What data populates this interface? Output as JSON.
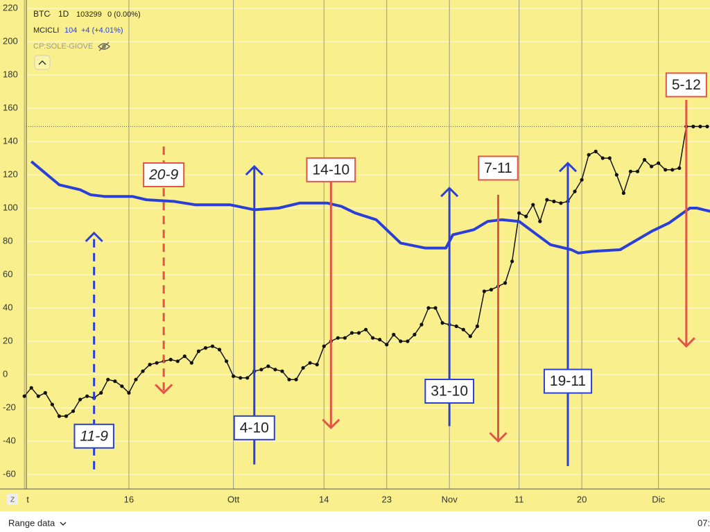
{
  "chart_data": {
    "type": "line",
    "background": "#f9ef8c",
    "grid": true,
    "xlim": [
      -3.5,
      98.4
    ],
    "ylim": [
      -68.75,
      225
    ],
    "xticks": [
      {
        "value": 0,
        "label": "t"
      },
      {
        "value": 15,
        "label": "16"
      },
      {
        "value": 30,
        "label": "Ott"
      },
      {
        "value": 43,
        "label": "14"
      },
      {
        "value": 52,
        "label": "23"
      },
      {
        "value": 61,
        "label": "Nov"
      },
      {
        "value": 71,
        "label": "11"
      },
      {
        "value": 80,
        "label": "20"
      },
      {
        "value": 91,
        "label": "Dic"
      }
    ],
    "yticks": [
      -60,
      -40,
      -20,
      0,
      20,
      40,
      60,
      80,
      100,
      120,
      140,
      160,
      180,
      200,
      220
    ],
    "price_line": 149,
    "series": [
      {
        "name": "BTC",
        "color": "#111111",
        "markers": true,
        "width": 1.5,
        "x": [
          0,
          1,
          2,
          3,
          4,
          5,
          6,
          7,
          8,
          9,
          10,
          11,
          12,
          13,
          14,
          15,
          16,
          17,
          18,
          19,
          20,
          21,
          22,
          23,
          24,
          25,
          26,
          27,
          28,
          29,
          30,
          31,
          32,
          33,
          34,
          35,
          36,
          37,
          38,
          39,
          40,
          41,
          42,
          43,
          44,
          45,
          46,
          47,
          48,
          49,
          50,
          51,
          52,
          53,
          54,
          55,
          56,
          57,
          58,
          59,
          60,
          61,
          62,
          63,
          64,
          65,
          66,
          67,
          68,
          69,
          70,
          71,
          72,
          73,
          74,
          75,
          76,
          77,
          78,
          79,
          80,
          81,
          82,
          83,
          84,
          85,
          86,
          87,
          88,
          89,
          90,
          91,
          92,
          93,
          94,
          95,
          96,
          97,
          98
        ],
        "values": [
          -13,
          -8,
          -13,
          -11,
          -18,
          -25,
          -25,
          -22,
          -15,
          -13,
          -14,
          -11,
          -3,
          -4,
          -7,
          -11,
          -3,
          2,
          6,
          7,
          8,
          9,
          8,
          11,
          7,
          14,
          16,
          17,
          15,
          8,
          -1,
          -2,
          -2,
          2,
          3,
          5,
          3,
          2,
          -3,
          -3,
          4,
          7,
          6,
          17,
          20,
          22,
          22,
          25,
          25,
          27,
          22,
          21,
          18,
          24,
          20,
          20,
          24,
          30,
          40,
          40,
          31,
          30,
          29,
          27,
          23,
          29,
          50,
          51,
          53,
          55,
          68,
          97,
          95,
          102,
          92,
          105,
          104,
          103,
          104,
          110,
          117,
          132,
          134,
          130,
          130,
          120,
          109,
          122,
          122,
          129,
          125,
          127,
          123,
          123,
          124,
          149,
          149,
          149,
          149
        ]
      },
      {
        "name": "MCICLI",
        "color": "#2a3fd8",
        "markers": false,
        "width": 4,
        "x": [
          1,
          5,
          8,
          9.5,
          11.5,
          15.5,
          17.5,
          21.5,
          24.5,
          29.5,
          33,
          36.5,
          39.5,
          43.5,
          45.5,
          47.5,
          50.5,
          54,
          57.5,
          60.5,
          61.5,
          64.5,
          66.5,
          68.5,
          71,
          75.5,
          78.5,
          79.5,
          81.5,
          85.5,
          90,
          92.5,
          95.5,
          96.5,
          98.5
        ],
        "values": [
          128,
          114,
          111,
          108,
          107,
          107,
          105,
          104,
          102,
          102,
          99,
          100,
          103,
          103,
          101,
          97,
          93,
          79,
          76,
          76,
          84,
          87,
          92,
          93,
          92,
          78,
          75,
          73,
          74,
          75,
          86,
          91,
          100,
          100,
          98
        ]
      }
    ],
    "header": {
      "interval": "1D",
      "btc_value": "103299",
      "btc_change": "0 (0.00%)",
      "mcicli_value": "104",
      "mcicli_change": "+4 (+4.01%)",
      "hidden_indicator": "CP:SOLE-GIOVE"
    },
    "annotations": [
      {
        "label": "11-9",
        "x": 10,
        "y_from": -57,
        "y_to": 85,
        "label_y": -37,
        "color": "#2a3fd8",
        "dashed": true
      },
      {
        "label": "20-9",
        "x": 20,
        "y_from": 137,
        "y_to": -11,
        "label_y": 120,
        "color": "#e05545",
        "dashed": true
      },
      {
        "label": "4-10",
        "x": 33,
        "y_from": -54,
        "y_to": 125,
        "label_y": -32,
        "color": "#2a3fd8",
        "dashed": false
      },
      {
        "label": "14-10",
        "x": 44,
        "y_from": 117,
        "y_to": -32,
        "label_y": 123,
        "color": "#e05545",
        "dashed": false
      },
      {
        "label": "31-10",
        "x": 61,
        "y_from": -31,
        "y_to": 112,
        "label_y": -10,
        "color": "#2a3fd8",
        "dashed": false
      },
      {
        "label": "7-11",
        "x": 68,
        "y_from": 108,
        "y_to": -40,
        "label_y": 124,
        "color": "#e05545",
        "dashed": false
      },
      {
        "label": "19-11",
        "x": 78,
        "y_from": -55,
        "y_to": 127,
        "label_y": -4,
        "color": "#2a3fd8",
        "dashed": false
      },
      {
        "label": "5-12",
        "x": 95,
        "y_from": 165,
        "y_to": 17,
        "label_y": 174,
        "color": "#e05545",
        "dashed": false
      }
    ]
  },
  "footer": {
    "range": "Range data",
    "time": "07:",
    "z": "Z"
  }
}
